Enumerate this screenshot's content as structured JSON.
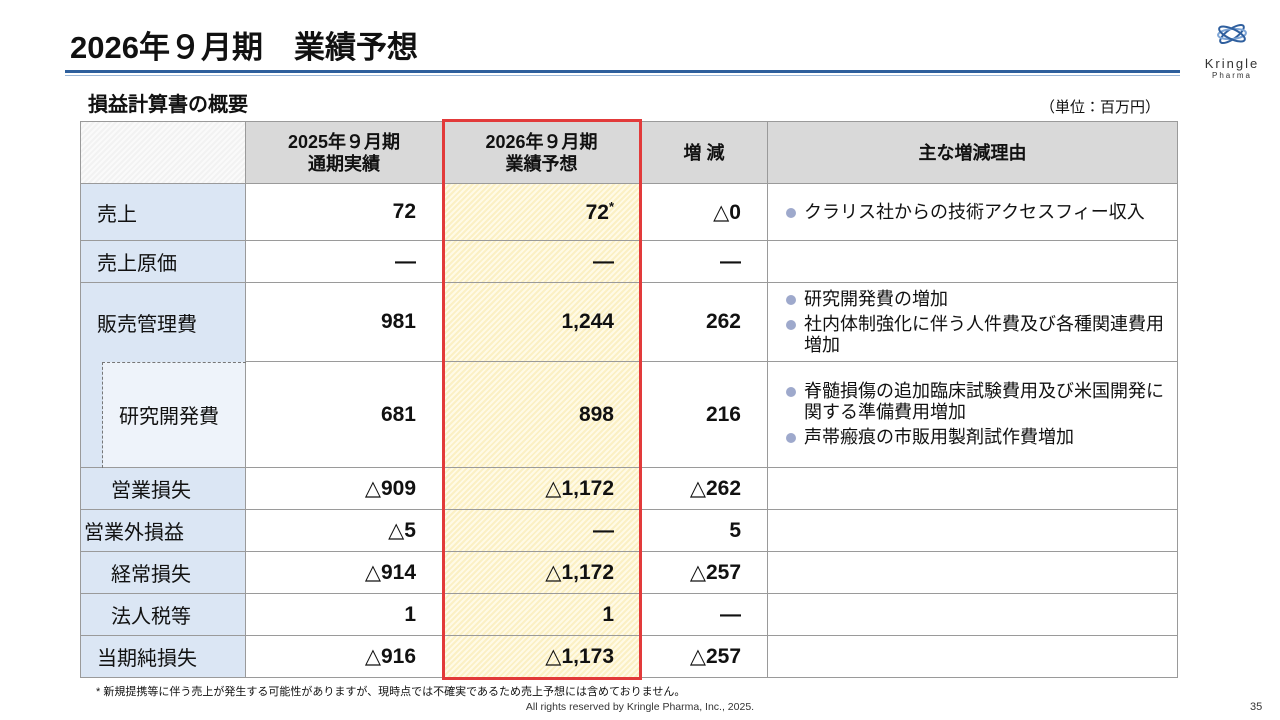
{
  "header": {
    "title": "2026年９月期　業績予想",
    "logo": {
      "name": "Kringle",
      "sub": "Pharma"
    }
  },
  "section_title": "損益計算書の概要",
  "unit_note": "（単位：百万円）",
  "table": {
    "columns": [
      [
        "2025年９月期",
        "通期実績"
      ],
      [
        "2026年９月期",
        "業績予想"
      ],
      [
        "増 減"
      ],
      [
        "主な増減理由"
      ]
    ],
    "rows": [
      {
        "label": "売上",
        "values": [
          "72",
          {
            "text": "72",
            "note": "*"
          },
          "△0"
        ],
        "reasons": [
          "クラリス社からの技術アクセスフィー収入"
        ]
      },
      {
        "label": "売上原価",
        "values": [
          "―",
          "―",
          "―"
        ]
      },
      {
        "label": "販売管理費",
        "values": [
          "981",
          "1,244",
          "262"
        ],
        "reasons": [
          "研究開発費の増加",
          "社内体制強化に伴う人件費及び各種関連費用増加"
        ]
      },
      {
        "label": "研究開発費",
        "values": [
          "681",
          "898",
          "216"
        ],
        "reasons": [
          "脊髄損傷の追加臨床試験費用及び米国開発に関する準備費用増加",
          "声帯瘢痕の市販用製剤試作費増加"
        ]
      },
      {
        "label": "営業損失",
        "values": [
          "△909",
          "△1,172",
          "△262"
        ]
      },
      {
        "label": "営業外損益",
        "values": [
          "△5",
          "―",
          "5"
        ]
      },
      {
        "label": "経常損失",
        "values": [
          "△914",
          "△1,172",
          "△257"
        ]
      },
      {
        "label": "法人税等",
        "values": [
          "1",
          "1",
          "―"
        ]
      },
      {
        "label": "当期純損失",
        "values": [
          "△916",
          "△1,173",
          "△257"
        ]
      }
    ]
  },
  "footnote": "*  新規提携等に伴う売上が発生する可能性がありますが、現時点では不確実であるため売上予想には含めておりません。",
  "copyright": "All rights reserved by Kringle Pharma, Inc., 2025.",
  "page_number": "35"
}
